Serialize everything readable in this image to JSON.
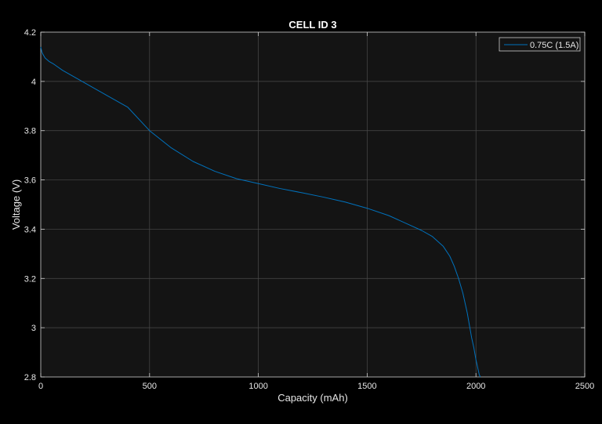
{
  "chart_data": {
    "type": "line",
    "title": "CELL ID 3",
    "xlabel": "Capacity (mAh)",
    "ylabel": "Voltage (V)",
    "xlim": [
      0,
      2500
    ],
    "ylim": [
      2.8,
      4.2
    ],
    "xticks": [
      0,
      500,
      1000,
      1500,
      2000,
      2500
    ],
    "yticks": [
      2.8,
      3.0,
      3.2,
      3.4,
      3.6,
      3.8,
      4.0,
      4.2
    ],
    "xtick_labels": [
      "0",
      "500",
      "1000",
      "1500",
      "2000",
      "2500"
    ],
    "ytick_labels": [
      "2.8",
      "3",
      "3.2",
      "3.4",
      "3.6",
      "3.8",
      "4",
      "4.2"
    ],
    "grid": true,
    "legend_position": "top-right",
    "series": [
      {
        "name": "0.75C (1.5A)",
        "color": "#0072bd",
        "x": [
          0,
          5,
          10,
          20,
          40,
          60,
          100,
          150,
          200,
          300,
          400,
          500,
          600,
          700,
          800,
          900,
          1000,
          1100,
          1200,
          1300,
          1400,
          1500,
          1600,
          1700,
          1750,
          1800,
          1850,
          1880,
          1900,
          1920,
          1940,
          1960,
          1970,
          1980,
          1990,
          2000,
          2005,
          2010,
          2015,
          2020
        ],
        "y": [
          4.14,
          4.12,
          4.11,
          4.095,
          4.08,
          4.07,
          4.045,
          4.02,
          3.995,
          3.945,
          3.895,
          3.8,
          3.73,
          3.675,
          3.635,
          3.605,
          3.585,
          3.565,
          3.548,
          3.53,
          3.51,
          3.485,
          3.455,
          3.415,
          3.395,
          3.37,
          3.33,
          3.29,
          3.25,
          3.2,
          3.14,
          3.06,
          3.01,
          2.96,
          2.92,
          2.87,
          2.85,
          2.83,
          2.81,
          2.8
        ]
      }
    ]
  }
}
